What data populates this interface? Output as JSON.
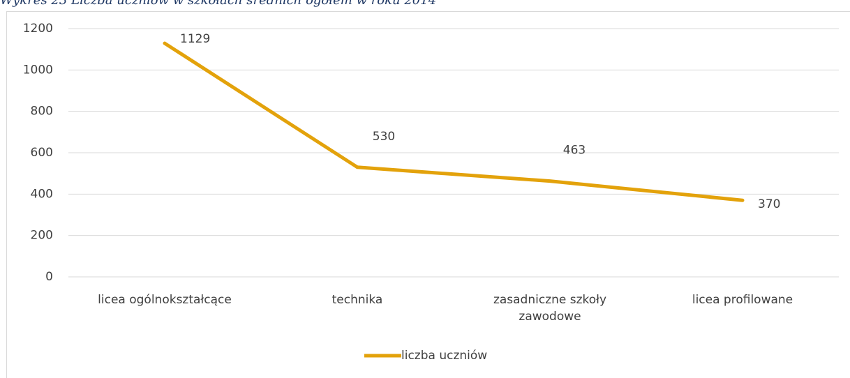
{
  "chart_data": {
    "type": "line",
    "title": "Wykres 23 Liczba uczniów w szkołach średnich ogółem w roku 2014",
    "categories": [
      "licea ogólnokształcące",
      "technika",
      "zasadniczne szkoły zawodowe",
      "licea profilowane"
    ],
    "series": [
      {
        "name": "liczba uczniów",
        "color": "#e3a20b",
        "values": [
          1129,
          530,
          463,
          370
        ]
      }
    ],
    "ylim": [
      0,
      1200
    ],
    "yticks": [
      0,
      200,
      400,
      600,
      800,
      1000,
      1200
    ],
    "grid": true,
    "legend": "bottom"
  }
}
